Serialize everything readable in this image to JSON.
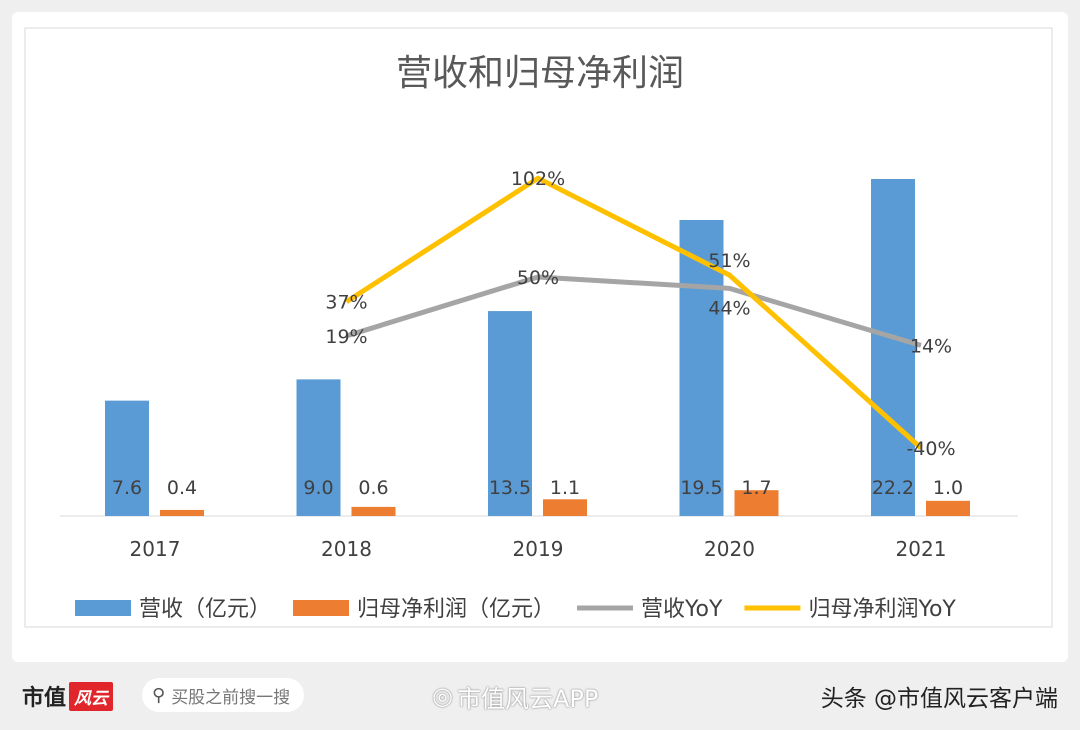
{
  "chart_data": {
    "type": "bar+line",
    "title": "营收和归母净利润",
    "categories": [
      "2017",
      "2018",
      "2019",
      "2020",
      "2021"
    ],
    "bar_series": [
      {
        "name": "营收（亿元）",
        "color": "#5b9bd5",
        "values": [
          7.6,
          9.0,
          13.5,
          19.5,
          22.2
        ],
        "labels": [
          "7.6",
          "9.0",
          "13.5",
          "19.5",
          "22.2"
        ]
      },
      {
        "name": "归母净利润（亿元）",
        "color": "#ed7d31",
        "values": [
          0.4,
          0.6,
          1.1,
          1.7,
          1.0
        ],
        "labels": [
          "0.4",
          "0.6",
          "1.1",
          "1.7",
          "1.0"
        ]
      }
    ],
    "line_series": [
      {
        "name": "营收YoY",
        "color": "#a5a5a5",
        "values": [
          null,
          19,
          50,
          44,
          14
        ],
        "labels": [
          "",
          "19%",
          "50%",
          "44%",
          "14%"
        ]
      },
      {
        "name": "归母净利润YoY",
        "color": "#ffc000",
        "values": [
          null,
          37,
          102,
          51,
          -40
        ],
        "labels": [
          "",
          "37%",
          "102%",
          "51%",
          "-40%"
        ]
      }
    ],
    "legend_position": "bottom",
    "grid": false
  },
  "footer": {
    "logo_text": "市值",
    "logo_mark": "风云",
    "search_placeholder": "买股之前搜一搜",
    "weibo_watermark": "市值风云APP",
    "toutiao_credit": "头条 @市值风云客户端"
  }
}
